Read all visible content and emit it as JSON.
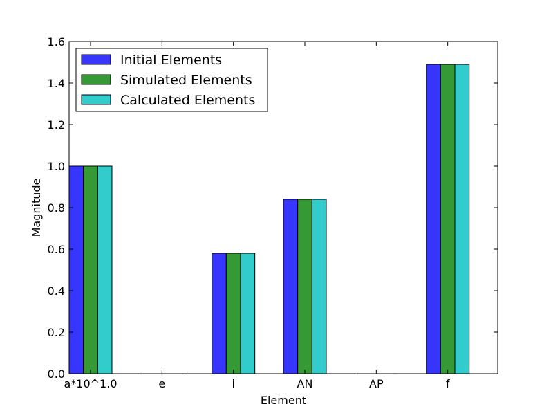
{
  "chart_data": {
    "type": "bar",
    "title": "",
    "xlabel": "Element",
    "ylabel": "Magnitude",
    "categories": [
      "a*10^1.0",
      "e",
      "i",
      "AN",
      "AP",
      "f"
    ],
    "series": [
      {
        "name": "Initial Elements",
        "color": "#3636ff",
        "values": [
          1.0,
          0.0,
          0.58,
          0.84,
          0.0,
          1.49
        ]
      },
      {
        "name": "Simulated Elements",
        "color": "#359a35",
        "values": [
          1.0,
          0.0,
          0.58,
          0.84,
          0.0,
          1.49
        ]
      },
      {
        "name": "Calculated Elements",
        "color": "#33cccc",
        "values": [
          1.0,
          0.0,
          0.58,
          0.84,
          0.0,
          1.49
        ]
      }
    ],
    "ylim": [
      0,
      1.6
    ],
    "yticks": [
      "0.0",
      "0.2",
      "0.4",
      "0.6",
      "0.8",
      "1.0",
      "1.2",
      "1.4",
      "1.6"
    ],
    "grid": false,
    "legend_position": "top-left"
  }
}
